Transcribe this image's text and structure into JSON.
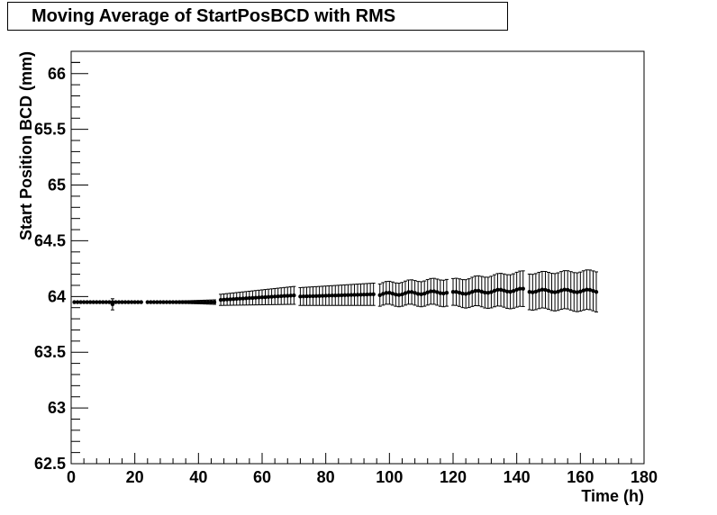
{
  "chart_data": {
    "type": "scatter",
    "title": "Moving Average of StartPosBCD with RMS",
    "xlabel": "Time (h)",
    "ylabel": "Start Position BCD (mm)",
    "xlim": [
      0,
      180
    ],
    "ylim": [
      62.5,
      66.2
    ],
    "x_ticks": [
      "0",
      "20",
      "40",
      "60",
      "80",
      "100",
      "120",
      "140",
      "160",
      "180"
    ],
    "y_ticks": [
      "62.5",
      "63",
      "63.5",
      "64",
      "64.5",
      "65",
      "65.5",
      "66"
    ],
    "grid": false,
    "colors": {
      "marker": "#000000",
      "frame": "#000000"
    },
    "series": [
      {
        "segments": [
          {
            "x_start": 1,
            "x_end": 22,
            "step": 1,
            "y_start": 63.95,
            "y_end": 63.95,
            "err_start": 0.0,
            "err_end": 0.0
          },
          {
            "x_start": 24,
            "x_end": 45,
            "step": 1,
            "y_start": 63.95,
            "y_end": 63.95,
            "err_start": 0.0,
            "err_end": 0.02
          },
          {
            "x_start": 47,
            "x_end": 70,
            "step": 1,
            "y_start": 63.97,
            "y_end": 64.01,
            "err_start": 0.05,
            "err_end": 0.08
          },
          {
            "x_start": 72,
            "x_end": 95,
            "step": 1,
            "y_start": 64.0,
            "y_end": 64.02,
            "err_start": 0.08,
            "err_end": 0.1
          },
          {
            "x_start": 97,
            "x_end": 118,
            "step": 1,
            "y_start": 64.02,
            "y_end": 64.04,
            "err_start": 0.1,
            "err_end": 0.12
          },
          {
            "x_start": 120,
            "x_end": 142,
            "step": 1,
            "y_start": 64.03,
            "y_end": 64.06,
            "err_start": 0.12,
            "err_end": 0.16
          },
          {
            "x_start": 144,
            "x_end": 165,
            "step": 1,
            "y_start": 64.05,
            "y_end": 64.05,
            "err_start": 0.16,
            "err_end": 0.18
          }
        ],
        "outliers": [
          {
            "x": 13,
            "y": 63.93,
            "err": 0.05
          }
        ]
      }
    ]
  }
}
